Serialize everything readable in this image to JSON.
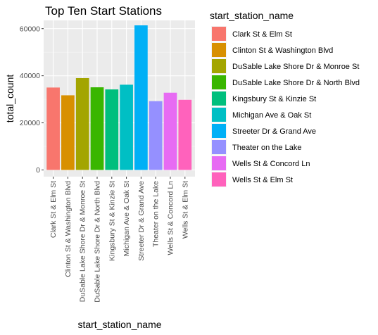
{
  "chart_data": {
    "type": "bar",
    "title": "Top Ten Start Stations",
    "xlabel": "start_station_name",
    "ylabel": "total_count",
    "ylim": [
      0,
      63500
    ],
    "yticks": [
      0,
      20000,
      40000,
      60000
    ],
    "ytick_labels": [
      "0",
      "20000",
      "40000",
      "60000"
    ],
    "grid": true,
    "legend_title": "start_station_name",
    "legend_position": "right",
    "categories": [
      "Clark St & Elm St",
      "Clinton St & Washington Blvd",
      "DuSable Lake Shore Dr & Monroe St",
      "DuSable Lake Shore Dr & North Blvd",
      "Kingsbury St & Kinzie St",
      "Michigan Ave & Oak St",
      "Streeter Dr & Grand Ave",
      "Theater on the Lake",
      "Wells St & Concord Ln",
      "Wells St & Elm St"
    ],
    "values": [
      35000,
      31700,
      39000,
      35100,
      34200,
      36200,
      61400,
      29200,
      32800,
      29800
    ],
    "colors": [
      "#F8766D",
      "#D89000",
      "#A3A500",
      "#39B600",
      "#00BF7D",
      "#00BFC4",
      "#00B0F6",
      "#9590FF",
      "#E76BF3",
      "#FF62BC"
    ]
  }
}
